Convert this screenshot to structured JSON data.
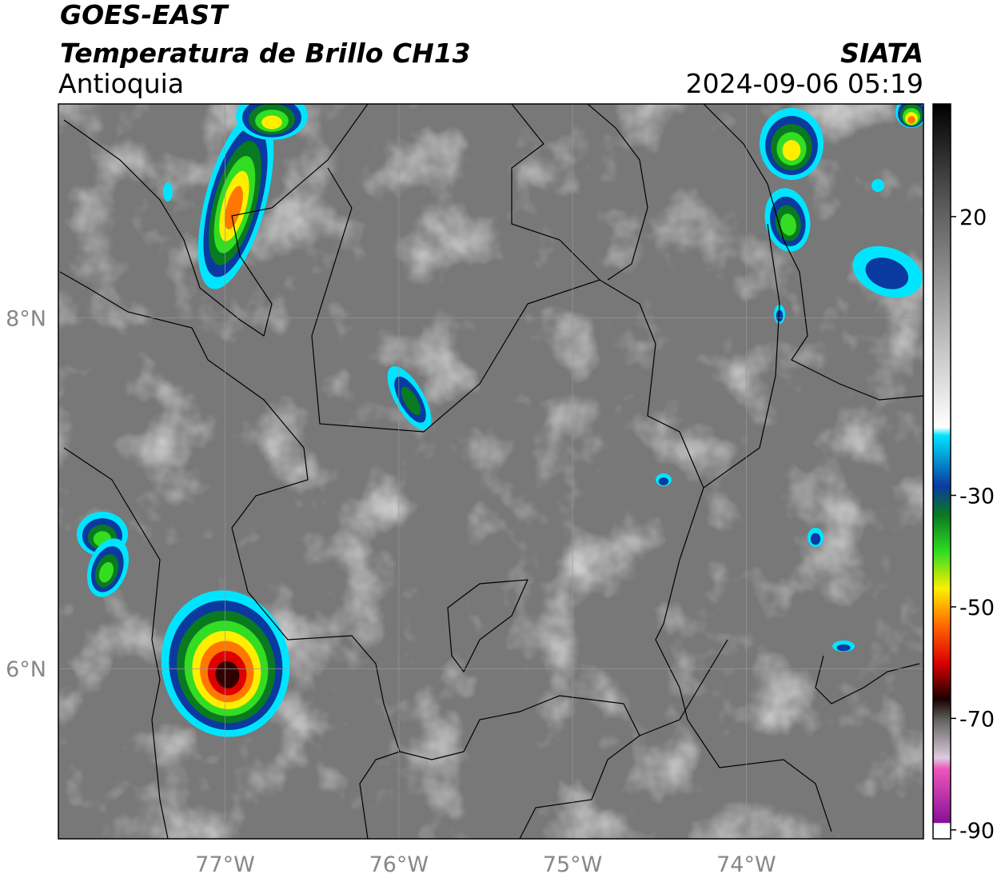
{
  "header": {
    "title": "GOES-EAST",
    "subtitle": "Temperatura de Brillo CH13",
    "region": "Antioquia",
    "source": "SIATA",
    "datetime": "2024-09-06 05:19"
  },
  "map": {
    "xlim": [
      -77.96,
      -72.98
    ],
    "ylim": [
      5.03,
      9.22
    ],
    "xticks": [
      {
        "value": -77,
        "label": "77°W"
      },
      {
        "value": -76,
        "label": "76°W"
      },
      {
        "value": -75,
        "label": "75°W"
      },
      {
        "value": -74,
        "label": "74°W"
      }
    ],
    "yticks": [
      {
        "value": 8,
        "label": "8°N"
      },
      {
        "value": 6,
        "label": "6°N"
      }
    ],
    "grid": true
  },
  "colorbar": {
    "lim": [
      -91.6,
      40.2
    ],
    "ticks": [
      20,
      -30,
      -50,
      -70,
      -90
    ]
  }
}
